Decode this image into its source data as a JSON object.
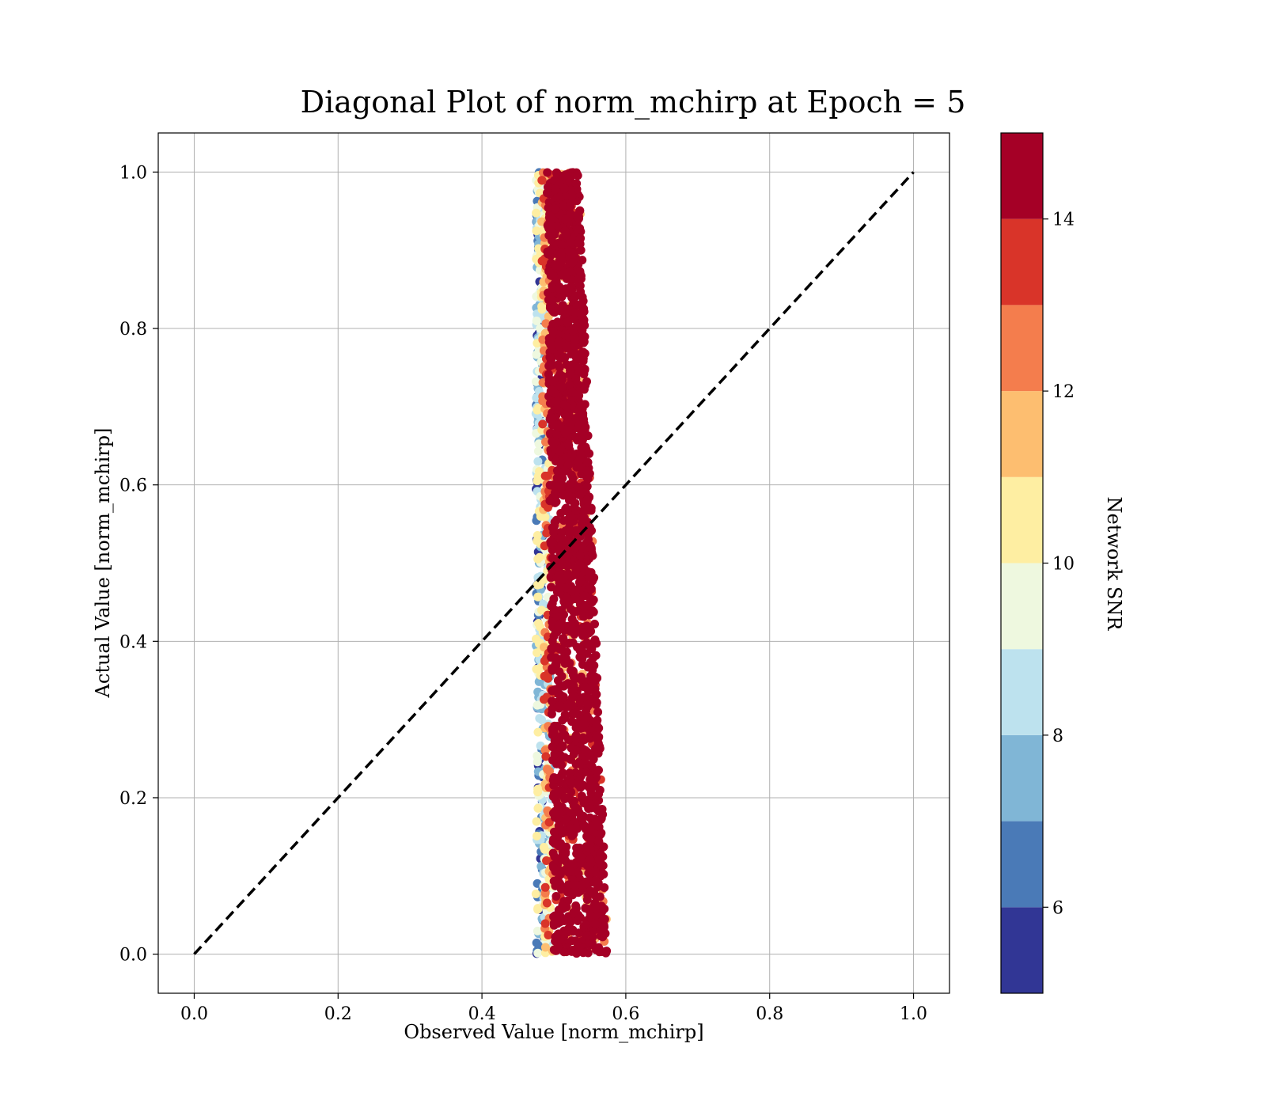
{
  "chart_data": {
    "type": "scatter",
    "title": "Diagonal Plot of norm_mchirp at Epoch = 5",
    "xlabel": "Observed Value [norm_mchirp]",
    "ylabel": "Actual Value [norm_mchirp]",
    "xlim": [
      -0.05,
      1.05
    ],
    "ylim": [
      -0.05,
      1.05
    ],
    "xticks": [
      0.0,
      0.2,
      0.4,
      0.6,
      0.8,
      1.0
    ],
    "yticks": [
      0.0,
      0.2,
      0.4,
      0.6,
      0.8,
      1.0
    ],
    "xtick_labels": [
      "0.0",
      "0.2",
      "0.4",
      "0.6",
      "0.8",
      "1.0"
    ],
    "ytick_labels": [
      "0.0",
      "0.2",
      "0.4",
      "0.6",
      "0.8",
      "1.0"
    ],
    "grid": true,
    "reference_line": {
      "style": "dashed",
      "color": "#000000",
      "from": [
        0.0,
        0.0
      ],
      "to": [
        1.0,
        1.0
      ]
    },
    "scatter_summary": {
      "y_range": [
        0.0,
        1.0
      ],
      "x_center_at_y0": 0.525,
      "x_center_at_y1": 0.505,
      "x_halfwidth_at_y0": 0.05,
      "x_halfwidth_at_y1": 0.03,
      "color_variable": "Network SNR",
      "note_low_snr_side": "left",
      "note_high_snr_side": "right/core"
    },
    "colorbar": {
      "label": "Network SNR",
      "min": 5,
      "max": 15,
      "ticks": [
        6,
        8,
        10,
        12,
        14
      ],
      "tick_labels": [
        "6",
        "8",
        "10",
        "12",
        "14"
      ],
      "bins": [
        {
          "from": 5,
          "to": 6,
          "color": "#313695"
        },
        {
          "from": 6,
          "to": 7,
          "color": "#4a7ab7"
        },
        {
          "from": 7,
          "to": 8,
          "color": "#80b6d6"
        },
        {
          "from": 8,
          "to": 9,
          "color": "#bde2ee"
        },
        {
          "from": 9,
          "to": 10,
          "color": "#eef8df"
        },
        {
          "from": 10,
          "to": 11,
          "color": "#feeea2"
        },
        {
          "from": 11,
          "to": 12,
          "color": "#fdbe70"
        },
        {
          "from": 12,
          "to": 13,
          "color": "#f47d4d"
        },
        {
          "from": 13,
          "to": 14,
          "color": "#d93429"
        },
        {
          "from": 14,
          "to": 15,
          "color": "#a50026"
        }
      ]
    }
  }
}
